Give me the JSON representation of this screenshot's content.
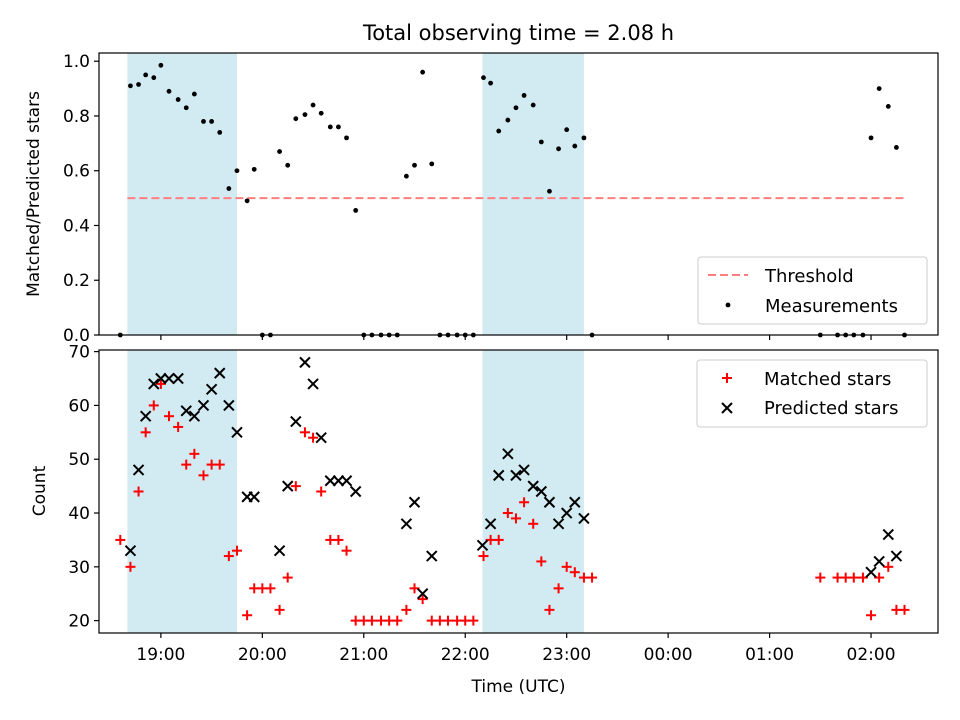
{
  "title": "Total observing time = 2.08 h",
  "colors": {
    "shade": "#ADD8E6",
    "threshold": "#FF7F7F",
    "measurement": "#000000",
    "matched": "#FF0000",
    "predicted": "#000000"
  },
  "chart_data": [
    {
      "type": "scatter",
      "ylabel": "Matched/Predicted stars",
      "xlim": [
        18.39,
        2.66
      ],
      "ylim": [
        0,
        1.03
      ],
      "y_ticks": [
        0.0,
        0.2,
        0.4,
        0.6,
        0.8,
        1.0
      ],
      "y_tick_labels": [
        "0.0",
        "0.2",
        "0.4",
        "0.6",
        "0.8",
        "1.0"
      ],
      "shaded_intervals": [
        [
          18.67,
          19.75
        ],
        [
          22.17,
          23.17
        ]
      ],
      "legend": {
        "position": "lower-right",
        "entries": [
          "Threshold",
          "Measurements"
        ]
      },
      "threshold": {
        "name": "Threshold",
        "y": 0.5,
        "x": [
          18.67,
          2.33
        ]
      },
      "series": [
        {
          "name": "Measurements",
          "points": [
            [
              18.6,
              0.0
            ],
            [
              18.7,
              0.91
            ],
            [
              18.78,
              0.915
            ],
            [
              18.85,
              0.95
            ],
            [
              18.93,
              0.94
            ],
            [
              19.0,
              0.985
            ],
            [
              19.08,
              0.89
            ],
            [
              19.17,
              0.86
            ],
            [
              19.25,
              0.83
            ],
            [
              19.33,
              0.88
            ],
            [
              19.42,
              0.78
            ],
            [
              19.5,
              0.78
            ],
            [
              19.58,
              0.74
            ],
            [
              19.67,
              0.535
            ],
            [
              19.75,
              0.6
            ],
            [
              19.85,
              0.49
            ],
            [
              19.92,
              0.605
            ],
            [
              20.0,
              0.0
            ],
            [
              20.08,
              0.0
            ],
            [
              20.17,
              0.67
            ],
            [
              20.25,
              0.62
            ],
            [
              20.33,
              0.79
            ],
            [
              20.42,
              0.805
            ],
            [
              20.5,
              0.84
            ],
            [
              20.58,
              0.81
            ],
            [
              20.67,
              0.76
            ],
            [
              20.75,
              0.76
            ],
            [
              20.83,
              0.72
            ],
            [
              20.92,
              0.455
            ],
            [
              21.0,
              0.0
            ],
            [
              21.08,
              0.0
            ],
            [
              21.17,
              0.0
            ],
            [
              21.25,
              0.0
            ],
            [
              21.33,
              0.0
            ],
            [
              21.42,
              0.58
            ],
            [
              21.5,
              0.62
            ],
            [
              21.58,
              0.96
            ],
            [
              21.67,
              0.625
            ],
            [
              21.75,
              0.0
            ],
            [
              21.83,
              0.0
            ],
            [
              21.92,
              0.0
            ],
            [
              22.0,
              0.0
            ],
            [
              22.08,
              0.0
            ],
            [
              22.18,
              0.94
            ],
            [
              22.25,
              0.92
            ],
            [
              22.33,
              0.745
            ],
            [
              22.42,
              0.785
            ],
            [
              22.5,
              0.83
            ],
            [
              22.58,
              0.875
            ],
            [
              22.67,
              0.84
            ],
            [
              22.75,
              0.705
            ],
            [
              22.83,
              0.525
            ],
            [
              22.92,
              0.68
            ],
            [
              23.0,
              0.75
            ],
            [
              23.08,
              0.69
            ],
            [
              23.17,
              0.72
            ],
            [
              23.25,
              0.0
            ],
            [
              1.5,
              0.0
            ],
            [
              1.67,
              0.0
            ],
            [
              1.75,
              0.0
            ],
            [
              1.83,
              0.0
            ],
            [
              1.92,
              0.0
            ],
            [
              2.0,
              0.72
            ],
            [
              2.08,
              0.9
            ],
            [
              2.17,
              0.835
            ],
            [
              2.25,
              0.685
            ],
            [
              2.33,
              0.0
            ]
          ]
        }
      ]
    },
    {
      "type": "scatter",
      "xlabel": "Time (UTC)",
      "ylabel": "Count",
      "xlim": [
        18.39,
        2.66
      ],
      "ylim": [
        17.7,
        70.3
      ],
      "y_ticks": [
        20,
        30,
        40,
        50,
        60,
        70
      ],
      "y_tick_labels": [
        "20",
        "30",
        "40",
        "50",
        "60",
        "70"
      ],
      "x_ticks": [
        19,
        20,
        21,
        22,
        23,
        0,
        1,
        2
      ],
      "x_tick_labels": [
        "19:00",
        "20:00",
        "21:00",
        "22:00",
        "23:00",
        "00:00",
        "01:00",
        "02:00"
      ],
      "shaded_intervals": [
        [
          18.67,
          19.75
        ],
        [
          22.17,
          23.17
        ]
      ],
      "legend": {
        "position": "top-right",
        "entries": [
          "Matched stars",
          "Predicted stars"
        ]
      },
      "series": [
        {
          "name": "Matched stars",
          "marker": "plus",
          "points": [
            [
              18.6,
              35
            ],
            [
              18.7,
              30
            ],
            [
              18.78,
              44
            ],
            [
              18.85,
              55
            ],
            [
              18.93,
              60
            ],
            [
              19.0,
              64
            ],
            [
              19.08,
              58
            ],
            [
              19.17,
              56
            ],
            [
              19.25,
              49
            ],
            [
              19.33,
              51
            ],
            [
              19.42,
              47
            ],
            [
              19.5,
              49
            ],
            [
              19.58,
              49
            ],
            [
              19.67,
              32
            ],
            [
              19.75,
              33
            ],
            [
              19.85,
              21
            ],
            [
              19.92,
              26
            ],
            [
              20.0,
              26
            ],
            [
              20.08,
              26
            ],
            [
              20.17,
              22
            ],
            [
              20.25,
              28
            ],
            [
              20.33,
              45
            ],
            [
              20.42,
              55
            ],
            [
              20.5,
              54
            ],
            [
              20.58,
              44
            ],
            [
              20.67,
              35
            ],
            [
              20.75,
              35
            ],
            [
              20.83,
              33
            ],
            [
              20.92,
              20
            ],
            [
              21.0,
              20
            ],
            [
              21.08,
              20
            ],
            [
              21.17,
              20
            ],
            [
              21.25,
              20
            ],
            [
              21.33,
              20
            ],
            [
              21.42,
              22
            ],
            [
              21.5,
              26
            ],
            [
              21.58,
              24
            ],
            [
              21.67,
              20
            ],
            [
              21.75,
              20
            ],
            [
              21.83,
              20
            ],
            [
              21.92,
              20
            ],
            [
              22.0,
              20
            ],
            [
              22.08,
              20
            ],
            [
              22.18,
              32
            ],
            [
              22.25,
              35
            ],
            [
              22.33,
              35
            ],
            [
              22.42,
              40
            ],
            [
              22.5,
              39
            ],
            [
              22.58,
              42
            ],
            [
              22.67,
              38
            ],
            [
              22.75,
              31
            ],
            [
              22.83,
              22
            ],
            [
              22.92,
              26
            ],
            [
              23.0,
              30
            ],
            [
              23.08,
              29
            ],
            [
              23.17,
              28
            ],
            [
              23.25,
              28
            ],
            [
              1.5,
              28
            ],
            [
              1.67,
              28
            ],
            [
              1.75,
              28
            ],
            [
              1.83,
              28
            ],
            [
              1.92,
              28
            ],
            [
              2.0,
              21
            ],
            [
              2.08,
              28
            ],
            [
              2.17,
              30
            ],
            [
              2.25,
              22
            ],
            [
              2.33,
              22
            ]
          ]
        },
        {
          "name": "Predicted stars",
          "marker": "x",
          "points": [
            [
              18.7,
              33
            ],
            [
              18.78,
              48
            ],
            [
              18.85,
              58
            ],
            [
              18.93,
              64
            ],
            [
              19.0,
              65
            ],
            [
              19.08,
              65
            ],
            [
              19.17,
              65
            ],
            [
              19.25,
              59
            ],
            [
              19.33,
              58
            ],
            [
              19.42,
              60
            ],
            [
              19.5,
              63
            ],
            [
              19.58,
              66
            ],
            [
              19.67,
              60
            ],
            [
              19.75,
              55
            ],
            [
              19.85,
              43
            ],
            [
              19.92,
              43
            ],
            [
              20.17,
              33
            ],
            [
              20.25,
              45
            ],
            [
              20.33,
              57
            ],
            [
              20.42,
              68
            ],
            [
              20.5,
              64
            ],
            [
              20.58,
              54
            ],
            [
              20.67,
              46
            ],
            [
              20.75,
              46
            ],
            [
              20.83,
              46
            ],
            [
              20.92,
              44
            ],
            [
              21.42,
              38
            ],
            [
              21.5,
              42
            ],
            [
              21.58,
              25
            ],
            [
              21.67,
              32
            ],
            [
              22.17,
              34
            ],
            [
              22.25,
              38
            ],
            [
              22.33,
              47
            ],
            [
              22.42,
              51
            ],
            [
              22.5,
              47
            ],
            [
              22.58,
              48
            ],
            [
              22.67,
              45
            ],
            [
              22.75,
              44
            ],
            [
              22.83,
              42
            ],
            [
              22.92,
              38
            ],
            [
              23.0,
              40
            ],
            [
              23.08,
              42
            ],
            [
              23.17,
              39
            ],
            [
              2.0,
              29
            ],
            [
              2.08,
              31
            ],
            [
              2.17,
              36
            ],
            [
              2.25,
              32
            ]
          ]
        }
      ]
    }
  ]
}
